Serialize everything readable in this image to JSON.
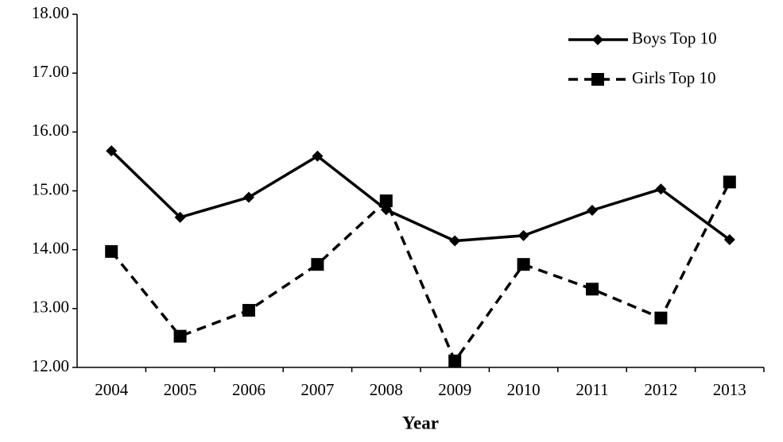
{
  "chart_data": {
    "type": "line",
    "x_label": "Year",
    "categories": [
      "2004",
      "2005",
      "2006",
      "2007",
      "2008",
      "2009",
      "2010",
      "2011",
      "2012",
      "2013"
    ],
    "series": [
      {
        "name": "Boys Top 10",
        "color": "#000000",
        "marker": "diamond",
        "dashed": false,
        "values": [
          15.68,
          14.55,
          14.89,
          15.59,
          14.68,
          14.15,
          14.24,
          14.67,
          15.03,
          14.17
        ]
      },
      {
        "name": "Girls Top 10",
        "color": "#000000",
        "marker": "square",
        "dashed": true,
        "values": [
          13.97,
          12.53,
          12.97,
          13.75,
          14.83,
          12.11,
          13.75,
          13.33,
          12.84,
          15.15
        ]
      }
    ],
    "ylim": [
      12,
      18
    ],
    "yticks": [
      {
        "value": 12,
        "label": "12.00"
      },
      {
        "value": 13,
        "label": "13.00"
      },
      {
        "value": 14,
        "label": "14.00"
      },
      {
        "value": 15,
        "label": "15.00"
      },
      {
        "value": 16,
        "label": "16.00"
      },
      {
        "value": 17,
        "label": "17.00"
      },
      {
        "value": 18,
        "label": "18.00"
      }
    ],
    "grid": false,
    "legend": "top-right"
  }
}
